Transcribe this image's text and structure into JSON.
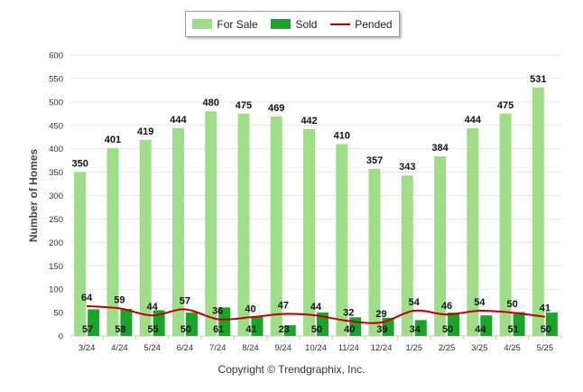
{
  "chart_data": {
    "type": "bar",
    "categories": [
      "3/24",
      "4/24",
      "5/24",
      "6/24",
      "7/24",
      "8/24",
      "9/24",
      "10/24",
      "11/24",
      "12/24",
      "1/25",
      "2/25",
      "3/25",
      "4/25",
      "5/25"
    ],
    "series": [
      {
        "name": "For Sale",
        "type": "bar",
        "color": "#a0dd88",
        "values": [
          350,
          401,
          419,
          444,
          480,
          475,
          469,
          442,
          410,
          357,
          343,
          384,
          444,
          475,
          531
        ]
      },
      {
        "name": "Sold",
        "type": "bar",
        "color": "#1aa52a",
        "values": [
          57,
          58,
          55,
          50,
          61,
          41,
          23,
          50,
          40,
          39,
          34,
          50,
          44,
          51,
          50
        ]
      },
      {
        "name": "Pended",
        "type": "line",
        "color": "#c00000",
        "values": [
          64,
          59,
          44,
          57,
          36,
          40,
          47,
          44,
          32,
          29,
          54,
          46,
          54,
          50,
          41
        ]
      }
    ],
    "title": "",
    "xlabel": "",
    "ylabel": "Number of Homes",
    "ylim": [
      0,
      600
    ],
    "yticks": [
      0,
      50,
      100,
      150,
      200,
      250,
      300,
      350,
      400,
      450,
      500,
      550,
      600
    ],
    "grid": true,
    "legend": "top-center"
  },
  "legend": {
    "for_sale": "For Sale",
    "sold": "Sold",
    "pended": "Pended"
  },
  "footer": {
    "copyright": "Copyright © Trendgraphix, Inc."
  }
}
